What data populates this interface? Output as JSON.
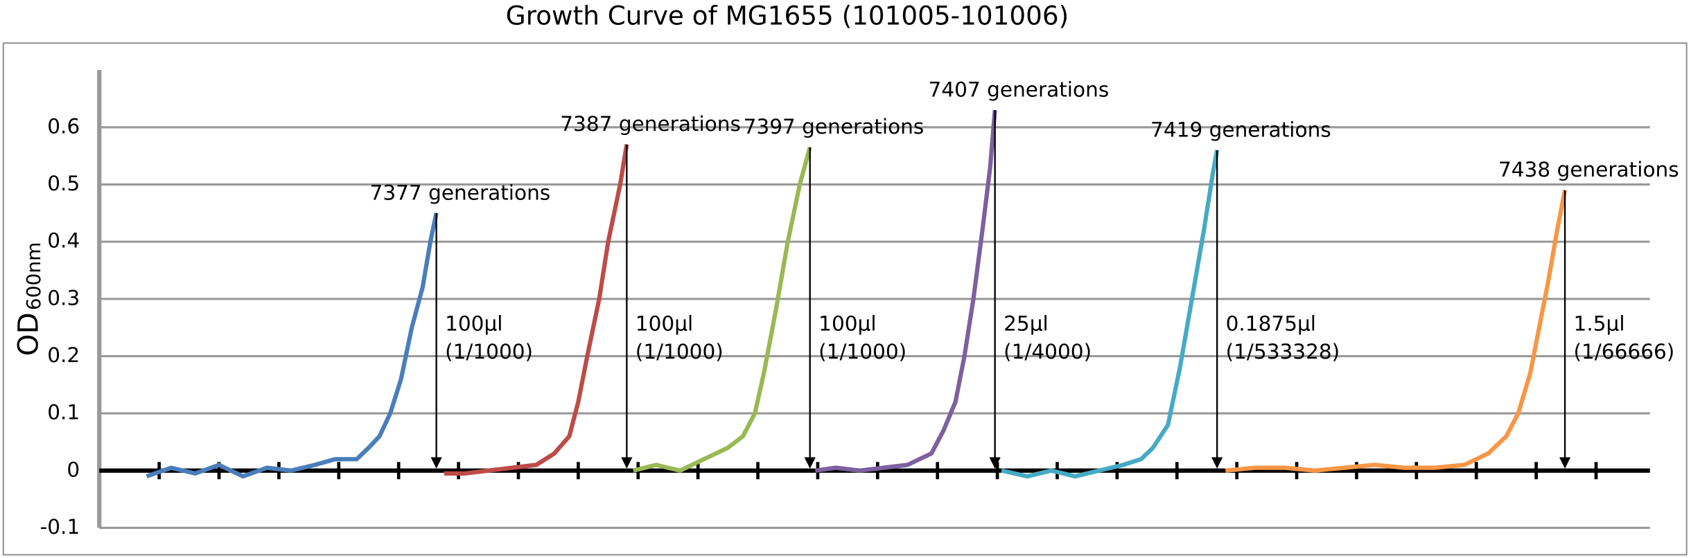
{
  "chart_data": {
    "type": "line",
    "title": "Growth Curve of MG1655 (101005-101006)",
    "ylabel": {
      "text": "OD",
      "subscript": "600nm"
    },
    "xlim": [
      0,
      25.9
    ],
    "xticks": [
      1,
      2,
      3,
      4,
      5,
      6,
      7,
      8,
      9,
      10,
      11,
      12,
      13,
      14,
      15,
      16,
      17,
      18,
      19,
      20,
      21,
      22,
      23,
      24,
      25
    ],
    "ylim": [
      -0.1,
      0.7
    ],
    "yticks": [
      -0.1,
      0,
      0.1,
      0.2,
      0.3,
      0.4,
      0.5,
      0.6
    ],
    "grid": true,
    "series": [
      {
        "color": "#4a7ebb",
        "annotation": "7377 generations",
        "note": [
          "100μl",
          "(1/1000)"
        ],
        "x": [
          0.79,
          1.2,
          1.6,
          2.0,
          2.4,
          2.8,
          3.2,
          3.6,
          3.94,
          4.3,
          4.5,
          4.68,
          4.86,
          5.04,
          5.22,
          5.4,
          5.53,
          5.63
        ],
        "values": [
          -0.01,
          0.005,
          -0.005,
          0.01,
          -0.01,
          0.005,
          0.0,
          0.01,
          0.02,
          0.02,
          0.04,
          0.06,
          0.1,
          0.16,
          0.25,
          0.32,
          0.4,
          0.45
        ]
      },
      {
        "color": "#be4b48",
        "annotation": "7387 generations",
        "note": [
          "100μl",
          "(1/1000)"
        ],
        "x": [
          5.76,
          6.1,
          6.5,
          6.9,
          7.3,
          7.6,
          7.85,
          8.0,
          8.15,
          8.35,
          8.5,
          8.7,
          8.81
        ],
        "values": [
          -0.005,
          -0.005,
          0.0,
          0.005,
          0.01,
          0.03,
          0.06,
          0.12,
          0.2,
          0.3,
          0.4,
          0.5,
          0.57
        ]
      },
      {
        "color": "#98b954",
        "annotation": "7397 generations",
        "note": [
          "100μl",
          "(1/1000)"
        ],
        "x": [
          8.92,
          9.3,
          9.7,
          10.1,
          10.5,
          10.75,
          10.95,
          11.1,
          11.3,
          11.5,
          11.7,
          11.87
        ],
        "values": [
          0.0,
          0.01,
          0.0,
          0.02,
          0.04,
          0.06,
          0.1,
          0.17,
          0.28,
          0.4,
          0.5,
          0.565
        ]
      },
      {
        "color": "#7d60a0",
        "annotation": "7407 generations",
        "note": [
          "25μl",
          "(1/4000)"
        ],
        "x": [
          11.96,
          12.3,
          12.7,
          13.1,
          13.5,
          13.9,
          14.1,
          14.3,
          14.45,
          14.6,
          14.75,
          14.88,
          14.96
        ],
        "values": [
          0.0,
          0.005,
          0.0,
          0.005,
          0.01,
          0.03,
          0.07,
          0.12,
          0.2,
          0.3,
          0.42,
          0.53,
          0.63
        ]
      },
      {
        "color": "#46aac5",
        "annotation": "7419 generations",
        "note": [
          "0.1875μl",
          "(1/533328)"
        ],
        "x": [
          15.07,
          15.5,
          15.9,
          16.3,
          16.7,
          17.1,
          17.4,
          17.6,
          17.85,
          18.05,
          18.25,
          18.45,
          18.6,
          18.67
        ],
        "values": [
          0.0,
          -0.01,
          0.0,
          -0.01,
          0.0,
          0.01,
          0.02,
          0.04,
          0.08,
          0.18,
          0.3,
          0.42,
          0.52,
          0.56
        ]
      },
      {
        "color": "#f79646",
        "annotation": "7438 generations",
        "note": [
          "1.5μl",
          "(1/66666)"
        ],
        "x": [
          18.81,
          19.3,
          19.8,
          20.3,
          20.8,
          21.3,
          21.8,
          22.3,
          22.8,
          23.2,
          23.5,
          23.7,
          23.9,
          24.05,
          24.2,
          24.35,
          24.48
        ],
        "values": [
          0.0,
          0.005,
          0.005,
          0.0,
          0.005,
          0.01,
          0.005,
          0.005,
          0.01,
          0.03,
          0.06,
          0.1,
          0.17,
          0.25,
          0.33,
          0.42,
          0.49
        ]
      }
    ]
  }
}
